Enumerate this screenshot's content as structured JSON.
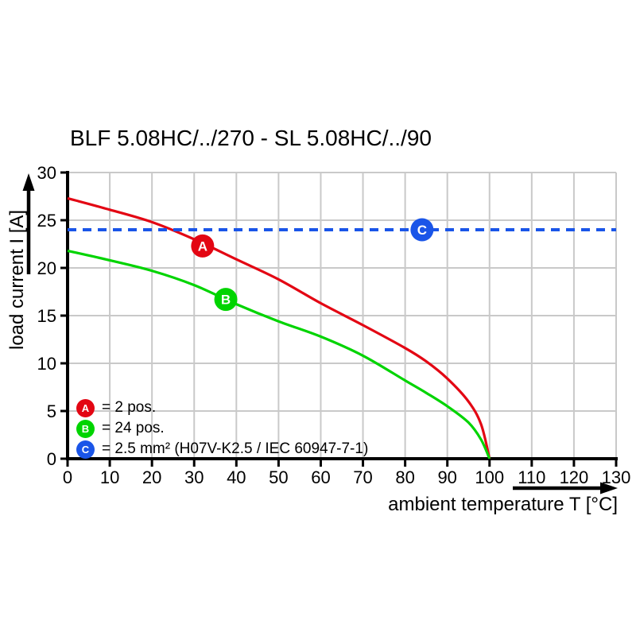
{
  "title": "BLF 5.08HC/../270 - SL 5.08HC/../90",
  "chart_data": {
    "type": "line",
    "title": "BLF 5.08HC/../270 - SL 5.08HC/../90",
    "xlabel": "ambient temperature T [°C]",
    "ylabel": "load current I [A]",
    "xlim": [
      0,
      130
    ],
    "ylim": [
      0,
      30
    ],
    "x_ticks": [
      0,
      10,
      20,
      30,
      40,
      50,
      60,
      70,
      80,
      90,
      100,
      110,
      120,
      130
    ],
    "y_ticks": [
      0,
      5,
      10,
      15,
      20,
      25,
      30
    ],
    "grid": true,
    "legend_position": "inside bottom-left",
    "series": [
      {
        "name": "A",
        "label": "2 pos.",
        "color": "#e30613",
        "style": "solid",
        "points": [
          [
            0,
            27.3
          ],
          [
            10,
            26.1
          ],
          [
            20,
            24.8
          ],
          [
            30,
            23.0
          ],
          [
            40,
            20.9
          ],
          [
            50,
            18.8
          ],
          [
            60,
            16.3
          ],
          [
            70,
            14.0
          ],
          [
            80,
            11.6
          ],
          [
            85,
            10.2
          ],
          [
            90,
            8.4
          ],
          [
            95,
            6.0
          ],
          [
            98,
            3.6
          ],
          [
            100,
            0
          ]
        ]
      },
      {
        "name": "B",
        "label": "24 pos.",
        "color": "#00d400",
        "style": "solid",
        "points": [
          [
            0,
            21.8
          ],
          [
            10,
            20.8
          ],
          [
            20,
            19.7
          ],
          [
            30,
            18.2
          ],
          [
            40,
            16.2
          ],
          [
            50,
            14.4
          ],
          [
            60,
            12.8
          ],
          [
            70,
            10.8
          ],
          [
            80,
            8.2
          ],
          [
            85,
            6.9
          ],
          [
            90,
            5.5
          ],
          [
            95,
            3.8
          ],
          [
            98,
            2.0
          ],
          [
            100,
            0
          ]
        ]
      },
      {
        "name": "C",
        "label": "2.5 mm² (H07V-K2.5 / IEC 60947-7-1)",
        "color": "#1a55e8",
        "style": "dashed",
        "points": [
          [
            0,
            24
          ],
          [
            130,
            24
          ]
        ]
      }
    ],
    "markers": [
      {
        "letter": "A",
        "x": 32,
        "y": 22.3,
        "color": "#e30613"
      },
      {
        "letter": "B",
        "x": 37.5,
        "y": 16.7,
        "color": "#00d400"
      },
      {
        "letter": "C",
        "x": 84,
        "y": 24,
        "color": "#1a55e8"
      }
    ]
  },
  "legend": {
    "items": [
      {
        "letter": "A",
        "color": "#e30613",
        "text": "= 2 pos."
      },
      {
        "letter": "B",
        "color": "#00d400",
        "text": "= 24 pos."
      },
      {
        "letter": "C",
        "color": "#1a55e8",
        "text": "= 2.5 mm² (H07V-K2.5 / IEC 60947-7-1)"
      }
    ]
  },
  "colors": {
    "grid": "#c9c9c9",
    "axis": "#000000",
    "background": "#ffffff",
    "tick_label": "#000000"
  }
}
